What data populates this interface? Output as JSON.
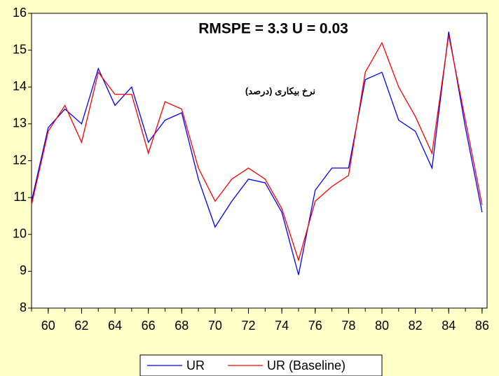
{
  "chart_data": {
    "type": "line",
    "annotations": [
      "RMSPE = 3.3    U = 0.03",
      "نرخ بیکاری (درصد)"
    ],
    "x": [
      59,
      60,
      61,
      62,
      63,
      64,
      65,
      66,
      67,
      68,
      69,
      70,
      71,
      72,
      73,
      74,
      75,
      76,
      77,
      78,
      79,
      80,
      81,
      82,
      83,
      84,
      85,
      86
    ],
    "series": [
      {
        "name": "UR",
        "color": "#0000ff",
        "values": [
          10.9,
          12.9,
          13.4,
          13.0,
          14.5,
          13.5,
          14.0,
          12.5,
          13.1,
          13.3,
          11.5,
          10.2,
          10.9,
          11.5,
          11.4,
          10.6,
          8.9,
          11.2,
          11.8,
          11.8,
          14.2,
          14.4,
          13.1,
          12.8,
          11.8,
          15.5,
          12.9,
          10.6
        ]
      },
      {
        "name": "UR (Baseline)",
        "color": "#ff0000",
        "values": [
          10.8,
          12.8,
          13.5,
          12.5,
          14.4,
          13.8,
          13.8,
          12.2,
          13.6,
          13.4,
          11.8,
          10.9,
          11.5,
          11.8,
          11.5,
          10.7,
          9.3,
          10.9,
          11.3,
          11.6,
          14.4,
          15.2,
          14.0,
          13.2,
          12.2,
          15.4,
          13.1,
          10.8
        ]
      }
    ],
    "xlim": [
      59,
      86.3
    ],
    "xticks": [
      60,
      62,
      64,
      66,
      68,
      70,
      72,
      74,
      76,
      78,
      80,
      82,
      84,
      86
    ],
    "ylim": [
      8,
      16
    ],
    "yticks": [
      8,
      9,
      10,
      11,
      12,
      13,
      14,
      15,
      16
    ]
  }
}
